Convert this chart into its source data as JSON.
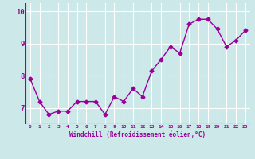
{
  "x": [
    0,
    1,
    2,
    3,
    4,
    5,
    6,
    7,
    8,
    9,
    10,
    11,
    12,
    13,
    14,
    15,
    16,
    17,
    18,
    19,
    20,
    21,
    22,
    23
  ],
  "y": [
    7.9,
    7.2,
    6.8,
    6.9,
    6.9,
    7.2,
    7.2,
    7.2,
    6.8,
    7.35,
    7.2,
    7.6,
    7.35,
    8.15,
    8.5,
    8.9,
    8.7,
    9.6,
    9.75,
    9.75,
    9.45,
    8.9,
    9.1,
    9.4
  ],
  "line_color": "#990099",
  "marker": "D",
  "markersize": 2.5,
  "linewidth": 1.0,
  "bg_color": "#cce8e8",
  "grid_color": "#ffffff",
  "xlabel": "Windchill (Refroidissement éolien,°C)",
  "xlabel_color": "#990099",
  "tick_color": "#990099",
  "ylim": [
    6.5,
    10.25
  ],
  "yticks": [
    7,
    8,
    9,
    10
  ],
  "xlim": [
    -0.5,
    23.5
  ],
  "xtick_labels": [
    "0",
    "1",
    "2",
    "3",
    "4",
    "5",
    "6",
    "7",
    "8",
    "9",
    "10",
    "11",
    "12",
    "13",
    "14",
    "15",
    "16",
    "17",
    "18",
    "19",
    "20",
    "21",
    "22",
    "23"
  ]
}
